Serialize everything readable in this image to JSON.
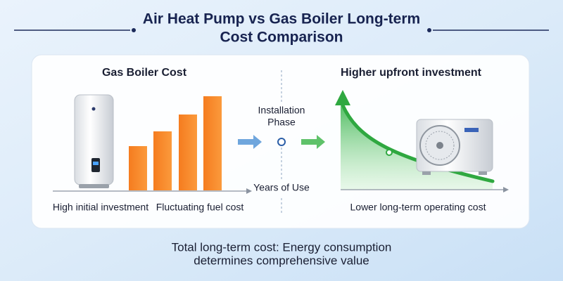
{
  "header": {
    "title_lines": [
      "Air Heat Pump vs Gas Boiler Long-term",
      "Cost Comparison"
    ]
  },
  "left_panel": {
    "heading": "Gas Boiler Cost",
    "labels": [
      "High initial investment",
      "Fluctuating fuel cost"
    ]
  },
  "center": {
    "phase_lines": [
      "Installation",
      "Phase"
    ],
    "axis_label": "Years of Use"
  },
  "right_panel": {
    "heading": "Higher upfront investment",
    "label": "Lower long-term operating cost"
  },
  "footer": {
    "lines": [
      "Total long-term cost: Energy consumption",
      "determines comprehensive value"
    ]
  }
}
